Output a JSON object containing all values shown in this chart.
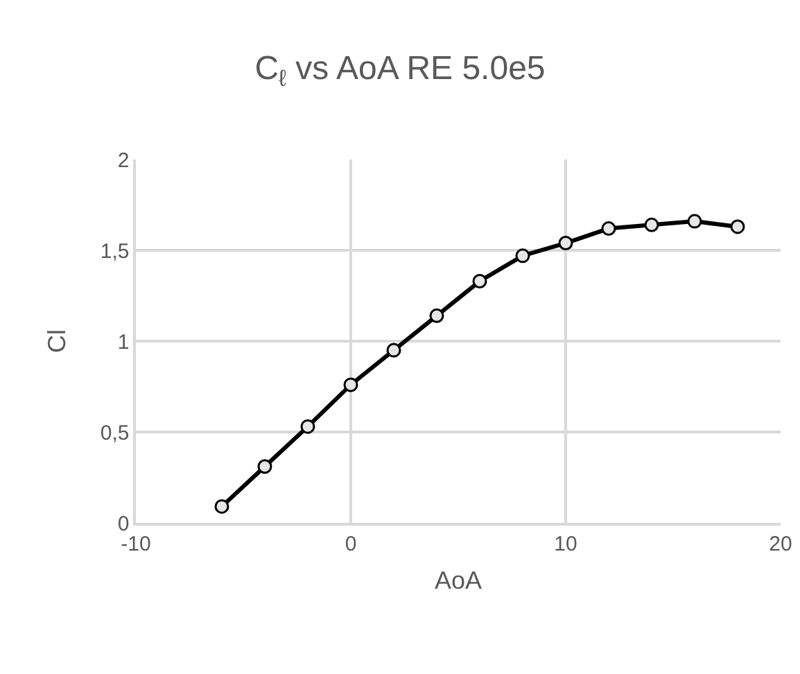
{
  "chart_data": {
    "type": "line",
    "title": "C$_{ℓ}$ vs AoA RE 5.0e5",
    "xlabel": "AoA",
    "ylabel": "Cl",
    "x": [
      -6,
      -4,
      -2,
      0,
      2,
      4,
      6,
      8,
      10,
      12,
      14,
      16,
      18
    ],
    "series": [
      {
        "color": "#000000",
        "values": [
          0.09,
          0.31,
          0.53,
          0.76,
          0.95,
          1.14,
          1.33,
          1.47,
          1.54,
          1.62,
          1.64,
          1.66,
          1.63
        ]
      }
    ],
    "xlim": [
      -10,
      20
    ],
    "xticks": [
      -10,
      0,
      10,
      20
    ],
    "ylim": [
      0,
      2
    ],
    "yticks": [
      0,
      {
        "value": 0.5,
        "label": "0,5"
      },
      1,
      {
        "value": 1.5,
        "label": "1,5"
      },
      2
    ],
    "grid": true,
    "marker": "circle",
    "line_style": "solid"
  }
}
